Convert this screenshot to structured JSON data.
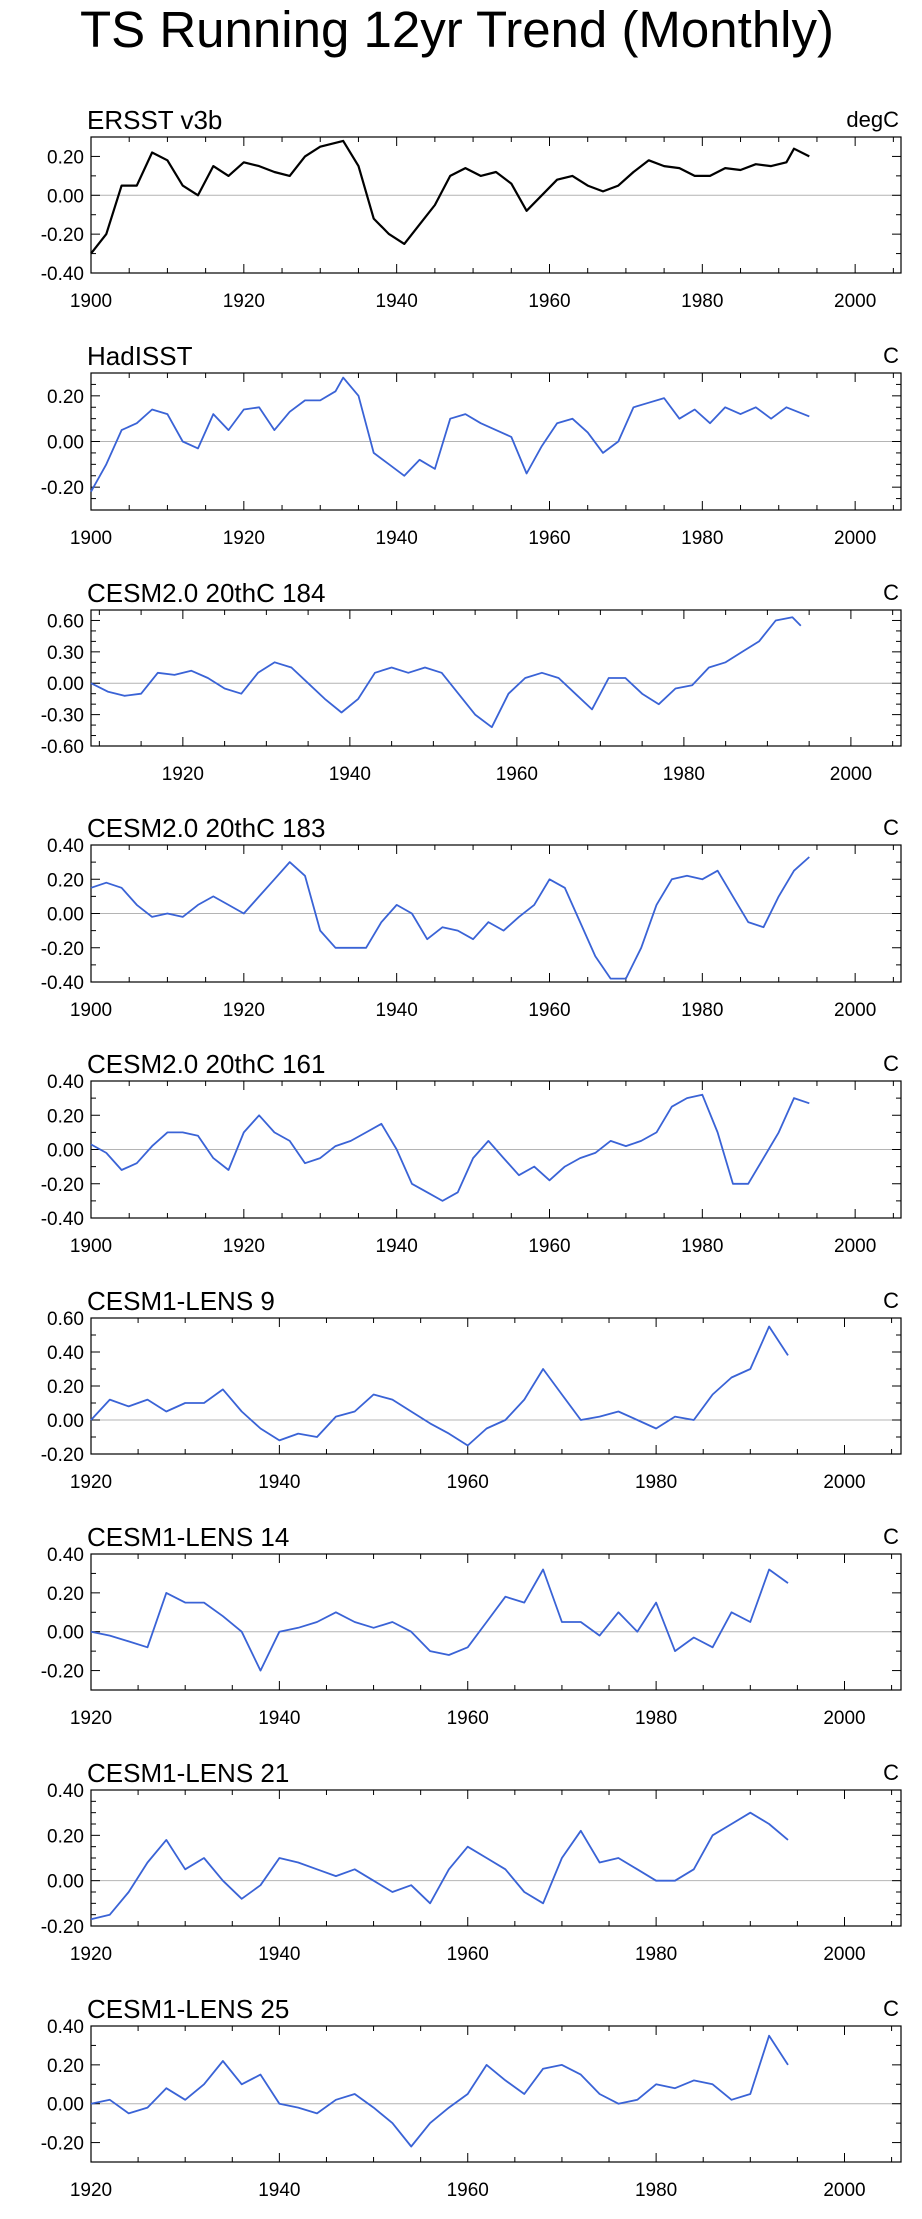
{
  "title": "TS Running 12yr Trend (Monthly)",
  "colors": {
    "observed": "#000000",
    "model": "#3a63d6",
    "zero": "#b4b4b4",
    "frame": "#000000"
  },
  "chart_data": [
    {
      "type": "line",
      "name": "ERSST v3b",
      "units": "degC",
      "color": "#000000",
      "xlim": [
        1900,
        2006
      ],
      "ylim": [
        -0.4,
        0.3
      ],
      "xticks": [
        1900,
        1920,
        1940,
        1960,
        1980,
        2000
      ],
      "yticks": [
        -0.4,
        -0.2,
        0.0,
        0.2
      ],
      "ytick_labels": [
        "-0.40",
        "-0.20",
        "0.00",
        "0.20"
      ],
      "x": [
        1900,
        1902,
        1904,
        1906,
        1908,
        1910,
        1912,
        1914,
        1916,
        1918,
        1920,
        1922,
        1924,
        1926,
        1928,
        1930,
        1933,
        1935,
        1937,
        1939,
        1941,
        1943,
        1945,
        1947,
        1949,
        1951,
        1953,
        1955,
        1957,
        1959,
        1961,
        1963,
        1965,
        1967,
        1969,
        1971,
        1973,
        1975,
        1977,
        1979,
        1981,
        1983,
        1985,
        1987,
        1989,
        1991,
        1992,
        1994
      ],
      "values": [
        -0.3,
        -0.2,
        0.05,
        0.05,
        0.22,
        0.18,
        0.05,
        0.0,
        0.15,
        0.1,
        0.17,
        0.15,
        0.12,
        0.1,
        0.2,
        0.25,
        0.28,
        0.15,
        -0.12,
        -0.2,
        -0.25,
        -0.15,
        -0.05,
        0.1,
        0.14,
        0.1,
        0.12,
        0.06,
        -0.08,
        0.0,
        0.08,
        0.1,
        0.05,
        0.02,
        0.05,
        0.12,
        0.18,
        0.15,
        0.14,
        0.1,
        0.1,
        0.14,
        0.13,
        0.16,
        0.15,
        0.17,
        0.24,
        0.2
      ]
    },
    {
      "type": "line",
      "name": "HadISST",
      "units": "C",
      "color": "#3a63d6",
      "xlim": [
        1900,
        2006
      ],
      "ylim": [
        -0.3,
        0.3
      ],
      "xticks": [
        1900,
        1920,
        1940,
        1960,
        1980,
        2000
      ],
      "yticks": [
        -0.2,
        0.0,
        0.2
      ],
      "ytick_labels": [
        "-0.20",
        "0.00",
        "0.20"
      ],
      "x": [
        1900,
        1902,
        1904,
        1906,
        1908,
        1910,
        1912,
        1914,
        1916,
        1918,
        1920,
        1922,
        1924,
        1926,
        1928,
        1930,
        1932,
        1933,
        1935,
        1937,
        1939,
        1941,
        1943,
        1945,
        1947,
        1949,
        1951,
        1953,
        1955,
        1957,
        1959,
        1961,
        1963,
        1965,
        1967,
        1969,
        1971,
        1973,
        1975,
        1977,
        1979,
        1981,
        1983,
        1985,
        1987,
        1989,
        1991,
        1994
      ],
      "values": [
        -0.22,
        -0.1,
        0.05,
        0.08,
        0.14,
        0.12,
        0.0,
        -0.03,
        0.12,
        0.05,
        0.14,
        0.15,
        0.05,
        0.13,
        0.18,
        0.18,
        0.22,
        0.28,
        0.2,
        -0.05,
        -0.1,
        -0.15,
        -0.08,
        -0.12,
        0.1,
        0.12,
        0.08,
        0.05,
        0.02,
        -0.14,
        -0.02,
        0.08,
        0.1,
        0.04,
        -0.05,
        0.0,
        0.15,
        0.17,
        0.19,
        0.1,
        0.14,
        0.08,
        0.15,
        0.12,
        0.15,
        0.1,
        0.15,
        0.11
      ]
    },
    {
      "type": "line",
      "name": "CESM2.0 20thC 184",
      "units": "C",
      "color": "#3a63d6",
      "xlim": [
        1909,
        2006
      ],
      "ylim": [
        -0.6,
        0.7
      ],
      "xticks": [
        1920,
        1940,
        1960,
        1980,
        2000
      ],
      "yticks": [
        -0.6,
        -0.3,
        0.0,
        0.3,
        0.6
      ],
      "ytick_labels": [
        "-0.60",
        "-0.30",
        "0.00",
        "0.30",
        "0.60"
      ],
      "x": [
        1909,
        1911,
        1913,
        1915,
        1917,
        1919,
        1921,
        1923,
        1925,
        1927,
        1929,
        1931,
        1933,
        1935,
        1937,
        1939,
        1941,
        1943,
        1945,
        1947,
        1949,
        1951,
        1953,
        1955,
        1957,
        1959,
        1961,
        1963,
        1965,
        1967,
        1969,
        1971,
        1973,
        1975,
        1977,
        1979,
        1981,
        1983,
        1985,
        1987,
        1989,
        1991,
        1993,
        1994
      ],
      "values": [
        0.0,
        -0.08,
        -0.12,
        -0.1,
        0.1,
        0.08,
        0.12,
        0.05,
        -0.05,
        -0.1,
        0.1,
        0.2,
        0.15,
        0.0,
        -0.15,
        -0.28,
        -0.15,
        0.1,
        0.15,
        0.1,
        0.15,
        0.1,
        -0.1,
        -0.3,
        -0.42,
        -0.1,
        0.05,
        0.1,
        0.05,
        -0.1,
        -0.25,
        0.05,
        0.05,
        -0.1,
        -0.2,
        -0.05,
        -0.02,
        0.15,
        0.2,
        0.3,
        0.4,
        0.6,
        0.63,
        0.55
      ]
    },
    {
      "type": "line",
      "name": "CESM2.0 20thC 183",
      "units": "C",
      "color": "#3a63d6",
      "xlim": [
        1900,
        2006
      ],
      "ylim": [
        -0.4,
        0.4
      ],
      "xticks": [
        1900,
        1920,
        1940,
        1960,
        1980,
        2000
      ],
      "yticks": [
        -0.4,
        -0.2,
        0.0,
        0.2,
        0.4
      ],
      "ytick_labels": [
        "-0.40",
        "-0.20",
        "0.00",
        "0.20",
        "0.40"
      ],
      "x": [
        1900,
        1902,
        1904,
        1906,
        1908,
        1910,
        1912,
        1914,
        1916,
        1918,
        1920,
        1922,
        1924,
        1926,
        1928,
        1930,
        1932,
        1934,
        1936,
        1938,
        1940,
        1942,
        1944,
        1946,
        1948,
        1950,
        1952,
        1954,
        1956,
        1958,
        1960,
        1962,
        1964,
        1966,
        1968,
        1970,
        1972,
        1974,
        1976,
        1978,
        1980,
        1982,
        1984,
        1986,
        1988,
        1990,
        1992,
        1994
      ],
      "values": [
        0.15,
        0.18,
        0.15,
        0.05,
        -0.02,
        0.0,
        -0.02,
        0.05,
        0.1,
        0.05,
        0.0,
        0.1,
        0.2,
        0.3,
        0.22,
        -0.1,
        -0.2,
        -0.2,
        -0.2,
        -0.05,
        0.05,
        0.0,
        -0.15,
        -0.08,
        -0.1,
        -0.15,
        -0.05,
        -0.1,
        -0.02,
        0.05,
        0.2,
        0.15,
        -0.05,
        -0.25,
        -0.38,
        -0.38,
        -0.2,
        0.05,
        0.2,
        0.22,
        0.2,
        0.25,
        0.1,
        -0.05,
        -0.08,
        0.1,
        0.25,
        0.33
      ]
    },
    {
      "type": "line",
      "name": "CESM2.0 20thC 161",
      "units": "C",
      "color": "#3a63d6",
      "xlim": [
        1900,
        2006
      ],
      "ylim": [
        -0.4,
        0.4
      ],
      "xticks": [
        1900,
        1920,
        1940,
        1960,
        1980,
        2000
      ],
      "yticks": [
        -0.4,
        -0.2,
        0.0,
        0.2,
        0.4
      ],
      "ytick_labels": [
        "-0.40",
        "-0.20",
        "0.00",
        "0.20",
        "0.40"
      ],
      "x": [
        1900,
        1902,
        1904,
        1906,
        1908,
        1910,
        1912,
        1914,
        1916,
        1918,
        1920,
        1922,
        1924,
        1926,
        1928,
        1930,
        1932,
        1934,
        1936,
        1938,
        1940,
        1942,
        1944,
        1946,
        1948,
        1950,
        1952,
        1954,
        1956,
        1958,
        1960,
        1962,
        1964,
        1966,
        1968,
        1970,
        1972,
        1974,
        1976,
        1978,
        1980,
        1982,
        1984,
        1986,
        1988,
        1990,
        1992,
        1994
      ],
      "values": [
        0.03,
        -0.02,
        -0.12,
        -0.08,
        0.02,
        0.1,
        0.1,
        0.08,
        -0.05,
        -0.12,
        0.1,
        0.2,
        0.1,
        0.05,
        -0.08,
        -0.05,
        0.02,
        0.05,
        0.1,
        0.15,
        0.0,
        -0.2,
        -0.25,
        -0.3,
        -0.25,
        -0.05,
        0.05,
        -0.05,
        -0.15,
        -0.1,
        -0.18,
        -0.1,
        -0.05,
        -0.02,
        0.05,
        0.02,
        0.05,
        0.1,
        0.25,
        0.3,
        0.32,
        0.1,
        -0.2,
        -0.2,
        -0.05,
        0.1,
        0.3,
        0.27
      ]
    },
    {
      "type": "line",
      "name": "CESM1-LENS 9",
      "units": "C",
      "color": "#3a63d6",
      "xlim": [
        1920,
        2006
      ],
      "ylim": [
        -0.2,
        0.6
      ],
      "xticks": [
        1920,
        1940,
        1960,
        1980,
        2000
      ],
      "yticks": [
        -0.2,
        0.0,
        0.2,
        0.4,
        0.6
      ],
      "ytick_labels": [
        "-0.20",
        "0.00",
        "0.20",
        "0.40",
        "0.60"
      ],
      "x": [
        1920,
        1922,
        1924,
        1926,
        1928,
        1930,
        1932,
        1934,
        1936,
        1938,
        1940,
        1942,
        1944,
        1946,
        1948,
        1950,
        1952,
        1954,
        1956,
        1958,
        1960,
        1962,
        1964,
        1966,
        1968,
        1970,
        1972,
        1974,
        1976,
        1978,
        1980,
        1982,
        1984,
        1986,
        1988,
        1990,
        1992,
        1994
      ],
      "values": [
        0.0,
        0.12,
        0.08,
        0.12,
        0.05,
        0.1,
        0.1,
        0.18,
        0.05,
        -0.05,
        -0.12,
        -0.08,
        -0.1,
        0.02,
        0.05,
        0.15,
        0.12,
        0.05,
        -0.02,
        -0.08,
        -0.15,
        -0.05,
        0.0,
        0.12,
        0.3,
        0.15,
        0.0,
        0.02,
        0.05,
        0.0,
        -0.05,
        0.02,
        0.0,
        0.15,
        0.25,
        0.3,
        0.55,
        0.38
      ]
    },
    {
      "type": "line",
      "name": "CESM1-LENS 14",
      "units": "C",
      "color": "#3a63d6",
      "xlim": [
        1920,
        2006
      ],
      "ylim": [
        -0.3,
        0.4
      ],
      "xticks": [
        1920,
        1940,
        1960,
        1980,
        2000
      ],
      "yticks": [
        -0.2,
        0.0,
        0.2,
        0.4
      ],
      "ytick_labels": [
        "-0.20",
        "0.00",
        "0.20",
        "0.40"
      ],
      "x": [
        1920,
        1922,
        1924,
        1926,
        1928,
        1930,
        1932,
        1934,
        1936,
        1938,
        1940,
        1942,
        1944,
        1946,
        1948,
        1950,
        1952,
        1954,
        1956,
        1958,
        1960,
        1962,
        1964,
        1966,
        1968,
        1970,
        1972,
        1974,
        1976,
        1978,
        1980,
        1982,
        1984,
        1986,
        1988,
        1990,
        1992,
        1994
      ],
      "values": [
        0.0,
        -0.02,
        -0.05,
        -0.08,
        0.2,
        0.15,
        0.15,
        0.08,
        0.0,
        -0.2,
        0.0,
        0.02,
        0.05,
        0.1,
        0.05,
        0.02,
        0.05,
        0.0,
        -0.1,
        -0.12,
        -0.08,
        0.05,
        0.18,
        0.15,
        0.32,
        0.05,
        0.05,
        -0.02,
        0.1,
        0.0,
        0.15,
        -0.1,
        -0.03,
        -0.08,
        0.1,
        0.05,
        0.32,
        0.25
      ]
    },
    {
      "type": "line",
      "name": "CESM1-LENS 21",
      "units": "C",
      "color": "#3a63d6",
      "xlim": [
        1920,
        2006
      ],
      "ylim": [
        -0.2,
        0.4
      ],
      "xticks": [
        1920,
        1940,
        1960,
        1980,
        2000
      ],
      "yticks": [
        -0.2,
        0.0,
        0.2,
        0.4
      ],
      "ytick_labels": [
        "-0.20",
        "0.00",
        "0.20",
        "0.40"
      ],
      "x": [
        1920,
        1922,
        1924,
        1926,
        1928,
        1930,
        1932,
        1934,
        1936,
        1938,
        1940,
        1942,
        1944,
        1946,
        1948,
        1950,
        1952,
        1954,
        1956,
        1958,
        1960,
        1962,
        1964,
        1966,
        1968,
        1970,
        1972,
        1974,
        1976,
        1978,
        1980,
        1982,
        1984,
        1986,
        1988,
        1990,
        1992,
        1994
      ],
      "values": [
        -0.17,
        -0.15,
        -0.05,
        0.08,
        0.18,
        0.05,
        0.1,
        0.0,
        -0.08,
        -0.02,
        0.1,
        0.08,
        0.05,
        0.02,
        0.05,
        0.0,
        -0.05,
        -0.02,
        -0.1,
        0.05,
        0.15,
        0.1,
        0.05,
        -0.05,
        -0.1,
        0.1,
        0.22,
        0.08,
        0.1,
        0.05,
        0.0,
        0.0,
        0.05,
        0.2,
        0.25,
        0.3,
        0.25,
        0.18
      ]
    },
    {
      "type": "line",
      "name": "CESM1-LENS 25",
      "units": "C",
      "color": "#3a63d6",
      "xlim": [
        1920,
        2006
      ],
      "ylim": [
        -0.3,
        0.4
      ],
      "xticks": [
        1920,
        1940,
        1960,
        1980,
        2000
      ],
      "yticks": [
        -0.2,
        0.0,
        0.2,
        0.4
      ],
      "ytick_labels": [
        "-0.20",
        "0.00",
        "0.20",
        "0.40"
      ],
      "x": [
        1920,
        1922,
        1924,
        1926,
        1928,
        1930,
        1932,
        1934,
        1936,
        1938,
        1940,
        1942,
        1944,
        1946,
        1948,
        1950,
        1952,
        1954,
        1956,
        1958,
        1960,
        1962,
        1964,
        1966,
        1968,
        1970,
        1972,
        1974,
        1976,
        1978,
        1980,
        1982,
        1984,
        1986,
        1988,
        1990,
        1992,
        1994
      ],
      "values": [
        0.0,
        0.02,
        -0.05,
        -0.02,
        0.08,
        0.02,
        0.1,
        0.22,
        0.1,
        0.15,
        0.0,
        -0.02,
        -0.05,
        0.02,
        0.05,
        -0.02,
        -0.1,
        -0.22,
        -0.1,
        -0.02,
        0.05,
        0.2,
        0.12,
        0.05,
        0.18,
        0.2,
        0.15,
        0.05,
        0.0,
        0.02,
        0.1,
        0.08,
        0.12,
        0.1,
        0.02,
        0.05,
        0.35,
        0.2
      ]
    }
  ]
}
